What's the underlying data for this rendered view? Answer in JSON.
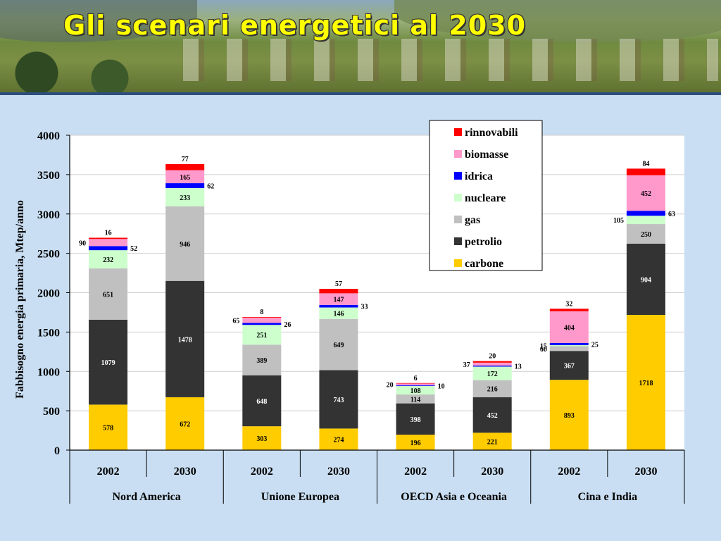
{
  "slide": {
    "title": "Gli scenari energetici al 2030"
  },
  "chart_data": {
    "type": "bar",
    "stacked": true,
    "ylabel": "Fabbisogno energia primaria, Mtep/anno",
    "ylim": [
      0,
      4000
    ],
    "yticks": [
      "0",
      "500",
      "1000",
      "1500",
      "2000",
      "2500",
      "3000",
      "3500",
      "4000"
    ],
    "grid": true,
    "legend_position": "top-right",
    "groups": [
      "Nord America",
      "Unione Europea",
      "OECD Asia e Oceania",
      "Cina e India"
    ],
    "categories": [
      "2002",
      "2030",
      "2002",
      "2030",
      "2002",
      "2030",
      "2002",
      "2030"
    ],
    "series": [
      {
        "name": "carbone",
        "color": "#ffcc00",
        "values": [
          578,
          672,
          303,
          274,
          196,
          221,
          893,
          1718
        ]
      },
      {
        "name": "petrolio",
        "color": "#333333",
        "values": [
          1079,
          1478,
          648,
          743,
          398,
          452,
          367,
          904
        ]
      },
      {
        "name": "gas",
        "color": "#c0c0c0",
        "values": [
          651,
          946,
          389,
          649,
          114,
          216,
          60,
          250
        ]
      },
      {
        "name": "nucleare",
        "color": "#ccffcc",
        "values": [
          232,
          233,
          251,
          146,
          108,
          172,
          15,
          105
        ]
      },
      {
        "name": "idrica",
        "color": "#0000ff",
        "values": [
          52,
          62,
          26,
          33,
          10,
          13,
          25,
          63
        ]
      },
      {
        "name": "biomasse",
        "color": "#ff99cc",
        "values": [
          90,
          165,
          65,
          147,
          20,
          37,
          404,
          452
        ]
      },
      {
        "name": "rinnovabili",
        "color": "#ff0000",
        "values": [
          16,
          77,
          8,
          57,
          6,
          20,
          32,
          84
        ]
      }
    ],
    "legend_order": [
      "rinnovabili",
      "biomasse",
      "idrica",
      "nucleare",
      "gas",
      "petrolio",
      "carbone"
    ]
  }
}
